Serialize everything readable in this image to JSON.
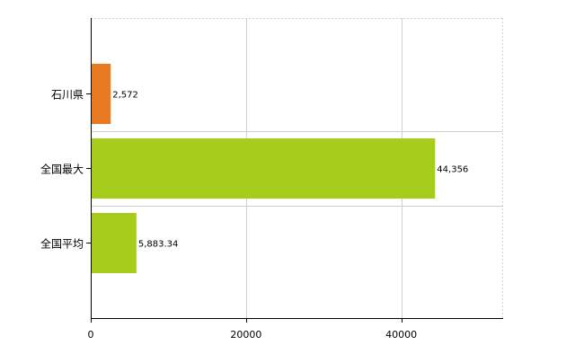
{
  "chart_data": {
    "type": "bar",
    "orientation": "horizontal",
    "categories": [
      "石川県",
      "全国最大",
      "全国平均"
    ],
    "values": [
      2572,
      44356,
      5883.34
    ],
    "value_labels": [
      "2,572",
      "44,356",
      "5,883.34"
    ],
    "bar_colors": [
      "#e87b22",
      "#a6cc1c",
      "#a6cc1c"
    ],
    "xlim": [
      0,
      53000
    ],
    "x_ticks": [
      0,
      20000,
      40000
    ],
    "x_tick_labels": [
      "0",
      "20000",
      "40000"
    ],
    "grid": true,
    "legend": "none",
    "title": "",
    "xlabel": "",
    "ylabel": ""
  }
}
